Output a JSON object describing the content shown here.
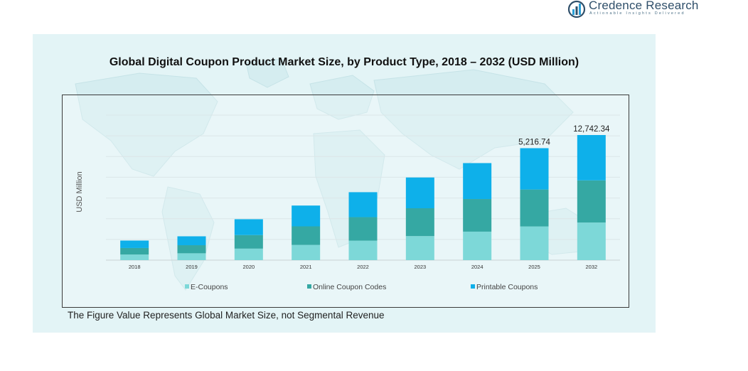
{
  "brand": {
    "name": "Credence Research",
    "tagline": "Actionable Insights Delivered"
  },
  "colors": {
    "panel_background": "#e3f4f6",
    "e_coupons": "#7dd8d8",
    "online_coupon_codes": "#35a8a3",
    "printable_coupons": "#0eb0ea"
  },
  "footnote": "The Figure Value Represents Global Market Size, not Segmental Revenue",
  "chart_data": {
    "type": "bar",
    "stacked": true,
    "title": "Global Digital Coupon Product Market Size, by Product Type, 2018 – 2032 (USD Million)",
    "ylabel": "USD Million",
    "xlabel": "",
    "categories": [
      "2018",
      "2019",
      "2020",
      "2021",
      "2022",
      "2023",
      "2024",
      "2025",
      "2032"
    ],
    "series": [
      {
        "name": "E-Coupons",
        "color": "#7dd8d8",
        "values": [
          540,
          660,
          1110,
          1470,
          1880,
          2320,
          2750,
          3250,
          3630
        ]
      },
      {
        "name": "Online Coupon Codes",
        "color": "#35a8a3",
        "values": [
          630,
          780,
          1310,
          1790,
          2270,
          2690,
          3150,
          3570,
          4070
        ]
      },
      {
        "name": "Printable Coupons",
        "color": "#0eb0ea",
        "values": [
          720,
          860,
          1530,
          2010,
          2410,
          2970,
          3470,
          3990,
          4380
        ]
      }
    ],
    "totals_labels": [
      {
        "category": "2025",
        "text": "5,216.74"
      },
      {
        "category": "2032",
        "text": "12,742.34"
      }
    ],
    "ylim": [
      0,
      14000
    ],
    "yticks_labeled": false,
    "grid": true,
    "legend_position": "bottom"
  }
}
